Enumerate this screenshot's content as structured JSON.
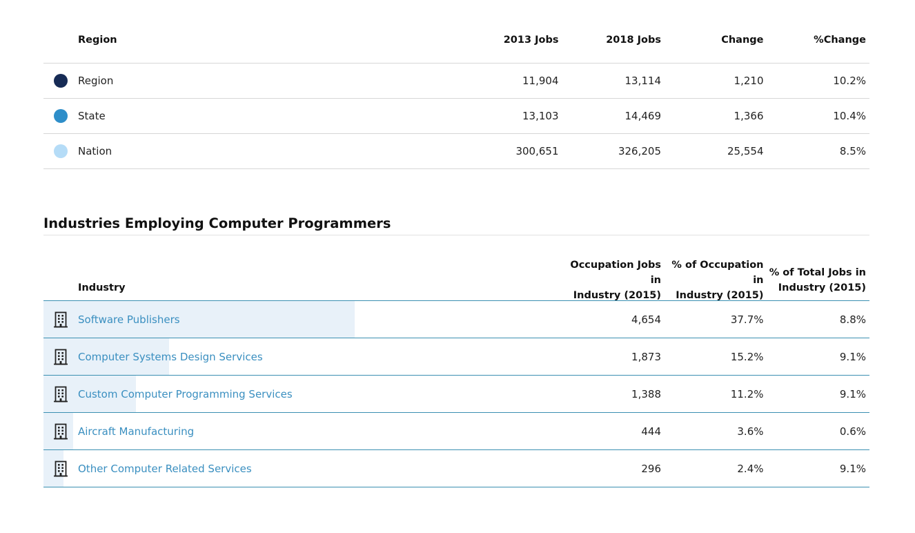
{
  "region_table": {
    "headers": {
      "region": "Region",
      "y2013": "2013 Jobs",
      "y2018": "2018 Jobs",
      "change": "Change",
      "pct": "%Change"
    },
    "rows": [
      {
        "label": "Region",
        "color": "#162b55",
        "jobs_2013": "11,904",
        "jobs_2018": "13,114",
        "change": "1,210",
        "pct_change": "10.2%"
      },
      {
        "label": "State",
        "color": "#2e8ec9",
        "jobs_2013": "13,103",
        "jobs_2018": "14,469",
        "change": "1,366",
        "pct_change": "10.4%"
      },
      {
        "label": "Nation",
        "color": "#b5dcf7",
        "jobs_2013": "300,651",
        "jobs_2018": "326,205",
        "change": "25,554",
        "pct_change": "8.5%"
      }
    ]
  },
  "industries": {
    "title": "Industries Employing Computer Programmers",
    "headers": {
      "industry": "Industry",
      "occ_jobs_l1": "Occupation Jobs in",
      "occ_jobs_l2": "Industry (2015)",
      "pct_occ_l1": "% of Occupation in",
      "pct_occ_l2": "Industry (2015)",
      "pct_total_l1": "% of Total Jobs in",
      "pct_total_l2": "Industry (2015)"
    },
    "icon": "building-icon",
    "rows": [
      {
        "name": "Software Publishers",
        "jobs": "4,654",
        "pct_occupation": "37.7%",
        "pct_total": "8.8%",
        "share": 0.377
      },
      {
        "name": "Computer Systems Design Services",
        "jobs": "1,873",
        "pct_occupation": "15.2%",
        "pct_total": "9.1%",
        "share": 0.152
      },
      {
        "name": "Custom Computer Programming Services",
        "jobs": "1,388",
        "pct_occupation": "11.2%",
        "pct_total": "9.1%",
        "share": 0.112
      },
      {
        "name": "Aircraft Manufacturing",
        "jobs": "444",
        "pct_occupation": "3.6%",
        "pct_total": "0.6%",
        "share": 0.036
      },
      {
        "name": "Other Computer Related Services",
        "jobs": "296",
        "pct_occupation": "2.4%",
        "pct_total": "9.1%",
        "share": 0.024
      }
    ]
  }
}
